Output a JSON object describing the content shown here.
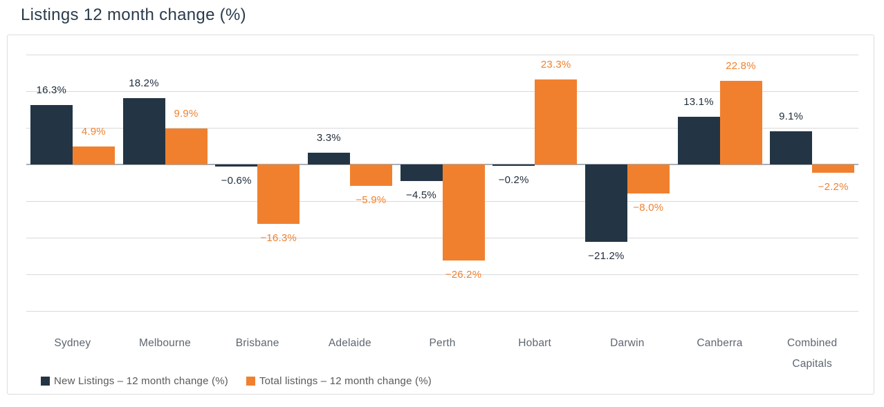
{
  "page": {
    "title": "Listings 12 month change (%)"
  },
  "chart_data": {
    "type": "bar",
    "title": "Listings 12 month change (%)",
    "categories": [
      "Sydney",
      "Melbourne",
      "Brisbane",
      "Adelaide",
      "Perth",
      "Hobart",
      "Darwin",
      "Canberra",
      "Combined Capitals"
    ],
    "series": [
      {
        "name": "New Listings – 12 month change (%)",
        "color": "#233544",
        "values": [
          16.3,
          18.2,
          -0.6,
          3.3,
          -4.5,
          -0.2,
          -21.2,
          13.1,
          9.1
        ]
      },
      {
        "name": "Total listings – 12 month change (%)",
        "color": "#f1802e",
        "values": [
          4.9,
          9.9,
          -16.3,
          -5.9,
          -26.2,
          23.3,
          -8.0,
          22.8,
          -2.2
        ]
      }
    ],
    "xlabel": "",
    "ylabel": "",
    "ylim": [
      -40,
      30
    ],
    "gridline_step": 10,
    "grid": true,
    "y_axis_tick_labels_visible": false,
    "data_labels": true,
    "value_suffix": "%",
    "legend_position": "bottom-left"
  },
  "style": {
    "series_label_colors": [
      "#1f2d3a",
      "#f1802e"
    ],
    "gridline_color": "#d9d9d9",
    "zero_line_color": "#a9afb5",
    "category_label_color": "#5e6670",
    "legend_text_color": "#595959",
    "title_color": "#2a3b4c",
    "card_border_color": "#dcdcdc",
    "background_color": "#ffffff"
  }
}
